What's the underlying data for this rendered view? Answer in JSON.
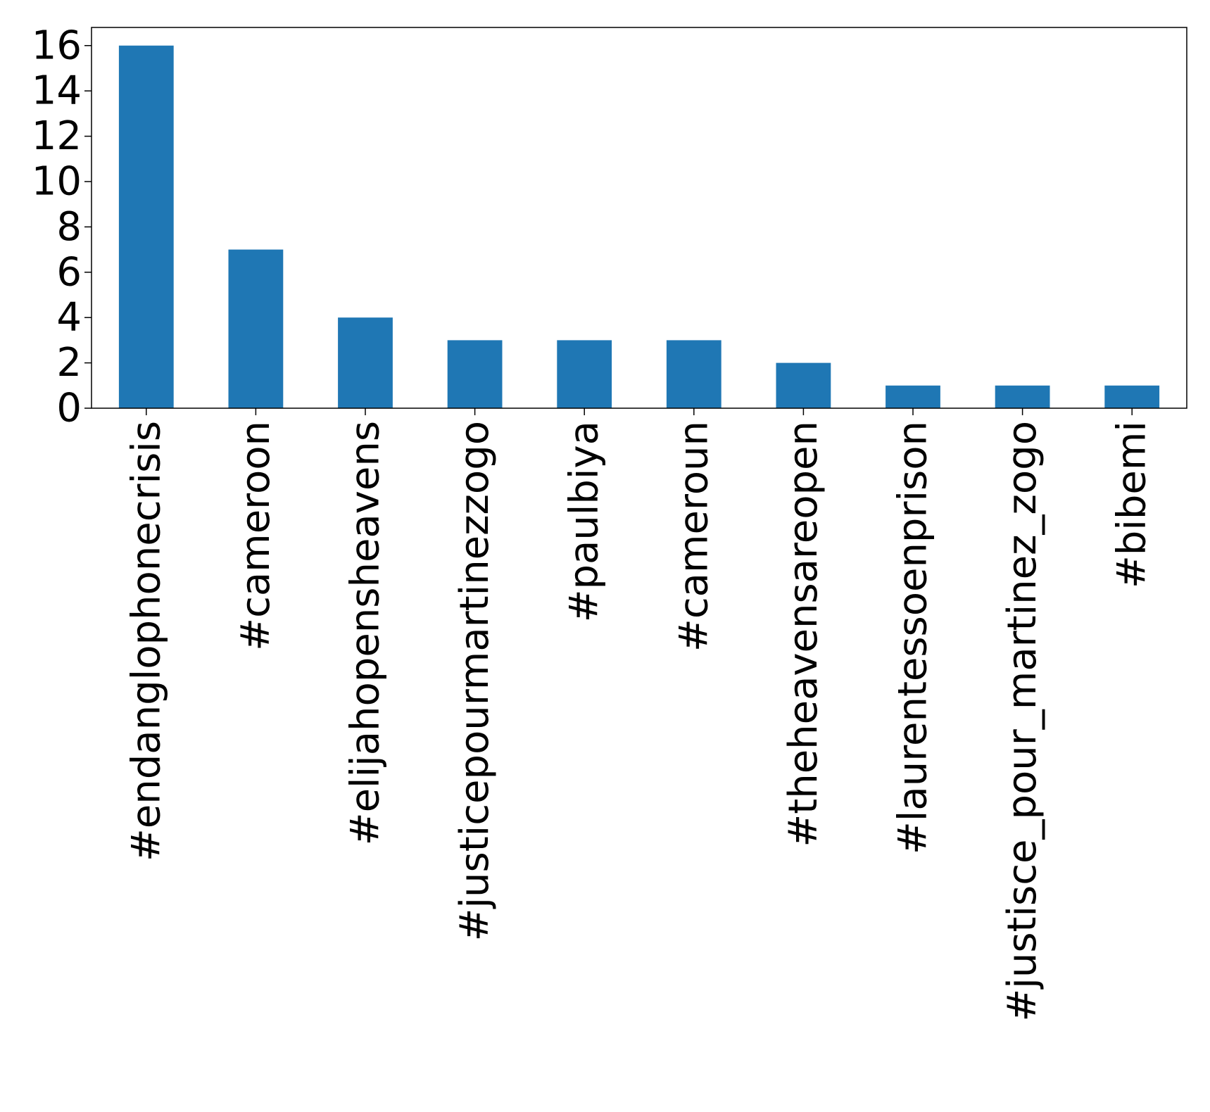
{
  "chart_data": {
    "type": "bar",
    "categories": [
      "#endanglophonecrisis",
      "#cameroon",
      "#elijahopensheavens",
      "#justicepourmartinezzogo",
      "#paulbiya",
      "#cameroun",
      "#theheavensareopen",
      "#laurentessoenprison",
      "#justisce_pour_martinez_zogo",
      "#bibemi"
    ],
    "values": [
      16,
      7,
      4,
      3,
      3,
      3,
      2,
      1,
      1,
      1
    ],
    "title": "",
    "xlabel": "",
    "ylabel": "",
    "ylim": [
      0,
      16.8
    ],
    "yticks": [
      0,
      2,
      4,
      6,
      8,
      10,
      12,
      14,
      16
    ],
    "grid": false,
    "legend": "none",
    "bar_color": "#1f77b4",
    "tick_label_rotation": "vertical"
  }
}
